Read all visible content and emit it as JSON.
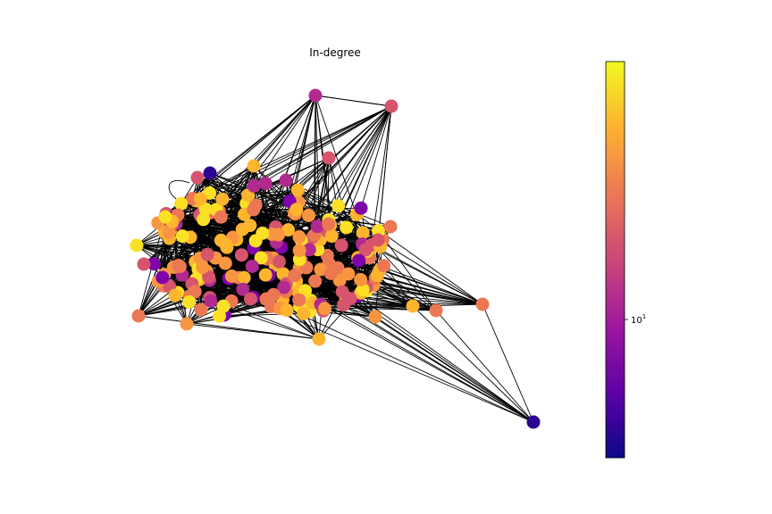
{
  "title": "In-degree",
  "colorbar": {
    "colormap": "plasma",
    "scale": "log",
    "tick_base": "10",
    "tick_exp": "1",
    "colors": [
      "#0d0887",
      "#5c01a6",
      "#9c179e",
      "#cc4778",
      "#ed7953",
      "#fdb42f",
      "#f0f921"
    ]
  },
  "node_palette": {
    "purple_dark": "#2c0594",
    "purple": "#7e03a8",
    "magenta": "#b12a90",
    "pink": "#d6556d",
    "coral": "#ec7853",
    "orange": "#f89540",
    "light_orange": "#fdb42f",
    "yellow": "#fce025",
    "edge": "#000000"
  }
}
